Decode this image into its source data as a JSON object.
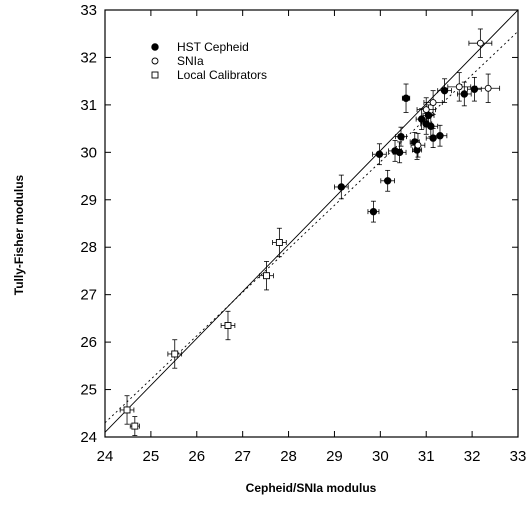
{
  "chart_data": {
    "type": "scatter",
    "title": "",
    "xlabel": "Cepheid/SNIa  modulus",
    "ylabel": "Tully-Fisher  modulus",
    "xlim": [
      24,
      33
    ],
    "ylim": [
      24,
      33
    ],
    "xticks": [
      24,
      25,
      26,
      27,
      28,
      29,
      30,
      31,
      32,
      33
    ],
    "yticks": [
      24,
      25,
      26,
      27,
      28,
      29,
      30,
      31,
      32,
      33
    ],
    "grid": false,
    "legend_position": "top-left",
    "series": [
      {
        "name": "HST Cepheid",
        "marker": "filled-circle",
        "points": [
          {
            "x": 29.15,
            "y": 29.27,
            "xerr": 0.15,
            "yerr": 0.25
          },
          {
            "x": 29.85,
            "y": 28.75,
            "xerr": 0.12,
            "yerr": 0.22
          },
          {
            "x": 29.98,
            "y": 29.96,
            "xerr": 0.15,
            "yerr": 0.22
          },
          {
            "x": 30.16,
            "y": 29.4,
            "xerr": 0.15,
            "yerr": 0.22
          },
          {
            "x": 30.32,
            "y": 30.03,
            "xerr": 0.14,
            "yerr": 0.22
          },
          {
            "x": 30.42,
            "y": 30.0,
            "xerr": 0.14,
            "yerr": 0.22
          },
          {
            "x": 30.45,
            "y": 30.33,
            "xerr": 0.12,
            "yerr": 0.2
          },
          {
            "x": 30.56,
            "y": 31.14,
            "xerr": 0.08,
            "yerr": 0.3
          },
          {
            "x": 30.75,
            "y": 30.22,
            "xerr": 0.1,
            "yerr": 0.2
          },
          {
            "x": 30.8,
            "y": 30.05,
            "xerr": 0.1,
            "yerr": 0.2
          },
          {
            "x": 30.9,
            "y": 30.7,
            "xerr": 0.12,
            "yerr": 0.22
          },
          {
            "x": 31.0,
            "y": 30.6,
            "xerr": 0.12,
            "yerr": 0.22
          },
          {
            "x": 31.05,
            "y": 30.78,
            "xerr": 0.12,
            "yerr": 0.22
          },
          {
            "x": 31.1,
            "y": 30.55,
            "xerr": 0.15,
            "yerr": 0.22
          },
          {
            "x": 31.15,
            "y": 30.3,
            "xerr": 0.15,
            "yerr": 0.2
          },
          {
            "x": 31.3,
            "y": 30.35,
            "xerr": 0.15,
            "yerr": 0.22
          },
          {
            "x": 31.4,
            "y": 31.3,
            "xerr": 0.15,
            "yerr": 0.25
          },
          {
            "x": 31.83,
            "y": 31.23,
            "xerr": 0.15,
            "yerr": 0.25
          },
          {
            "x": 32.05,
            "y": 31.33,
            "xerr": 0.15,
            "yerr": 0.25
          }
        ]
      },
      {
        "name": "SNIa",
        "marker": "open-circle",
        "points": [
          {
            "x": 30.82,
            "y": 30.15,
            "xerr": 0.15,
            "yerr": 0.25
          },
          {
            "x": 31.0,
            "y": 30.9,
            "xerr": 0.2,
            "yerr": 0.25
          },
          {
            "x": 31.15,
            "y": 31.05,
            "xerr": 0.2,
            "yerr": 0.25
          },
          {
            "x": 31.72,
            "y": 31.38,
            "xerr": 0.25,
            "yerr": 0.3
          },
          {
            "x": 32.18,
            "y": 32.3,
            "xerr": 0.25,
            "yerr": 0.3
          },
          {
            "x": 32.35,
            "y": 31.35,
            "xerr": 0.25,
            "yerr": 0.3
          }
        ]
      },
      {
        "name": "Local Calibrators",
        "marker": "open-square",
        "points": [
          {
            "x": 24.48,
            "y": 24.57,
            "xerr": 0.15,
            "yerr": 0.3
          },
          {
            "x": 24.65,
            "y": 24.23,
            "xerr": 0.1,
            "yerr": 0.2
          },
          {
            "x": 25.52,
            "y": 25.75,
            "xerr": 0.15,
            "yerr": 0.3
          },
          {
            "x": 26.68,
            "y": 26.35,
            "xerr": 0.15,
            "yerr": 0.3
          },
          {
            "x": 27.52,
            "y": 27.4,
            "xerr": 0.15,
            "yerr": 0.3
          },
          {
            "x": 27.8,
            "y": 28.1,
            "xerr": 0.15,
            "yerr": 0.3
          }
        ]
      }
    ],
    "lines": [
      {
        "style": "solid",
        "x": [
          24,
          33
        ],
        "y": [
          24.1,
          33.0
        ]
      },
      {
        "style": "dotted",
        "x": [
          24,
          33
        ],
        "y": [
          24.3,
          32.55
        ]
      }
    ]
  }
}
